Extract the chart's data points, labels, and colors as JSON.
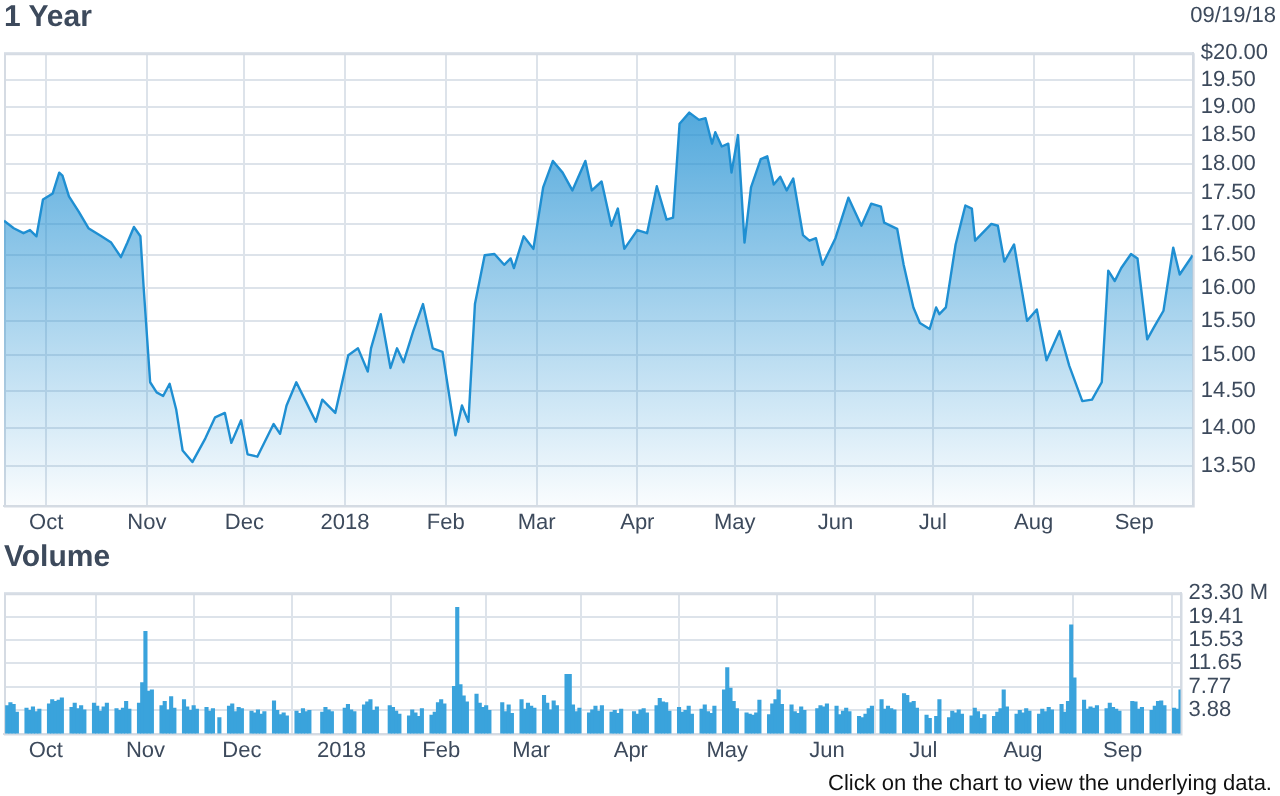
{
  "chart_data": [
    {
      "type": "area",
      "title": "1 Year",
      "subtitle": "09/19/18",
      "color": "#1f8fd2",
      "log": true,
      "grid": true,
      "xlim": [
        "2017-09-18",
        "2018-09-19"
      ],
      "xticks": [
        {
          "value": "2017-10-01",
          "label": "Oct"
        },
        {
          "value": "2017-11-01",
          "label": "Nov"
        },
        {
          "value": "2017-12-01",
          "label": "Dec"
        },
        {
          "value": "2018-01-01",
          "label": "2018"
        },
        {
          "value": "2018-02-01",
          "label": "Feb"
        },
        {
          "value": "2018-03-01",
          "label": "Mar"
        },
        {
          "value": "2018-04-01",
          "label": "Apr"
        },
        {
          "value": "2018-05-01",
          "label": "May"
        },
        {
          "value": "2018-06-01",
          "label": "Jun"
        },
        {
          "value": "2018-07-01",
          "label": "Jul"
        },
        {
          "value": "2018-08-01",
          "label": "Aug"
        },
        {
          "value": "2018-09-01",
          "label": "Sep"
        }
      ],
      "ylim": [
        13.0,
        20.0
      ],
      "yticks": [
        {
          "value": 13.5,
          "label": "13.50"
        },
        {
          "value": 14,
          "label": "14.00"
        },
        {
          "value": 14.5,
          "label": "14.50"
        },
        {
          "value": 15,
          "label": "15.00"
        },
        {
          "value": 15.5,
          "label": "15.50"
        },
        {
          "value": 16,
          "label": "16.00"
        },
        {
          "value": 16.5,
          "label": "16.50"
        },
        {
          "value": 17,
          "label": "17.00"
        },
        {
          "value": 17.5,
          "label": "17.50"
        },
        {
          "value": 18,
          "label": "18.00"
        },
        {
          "value": 18.5,
          "label": "18.50"
        },
        {
          "value": 19,
          "label": "19.00"
        },
        {
          "value": 19.5,
          "label": "19.50"
        },
        {
          "value": 20,
          "label": "$20.00"
        }
      ],
      "x": [
        "2017-09-18",
        "2017-09-21",
        "2017-09-24",
        "2017-09-26",
        "2017-09-28",
        "2017-09-30",
        "2017-10-03",
        "2017-10-05",
        "2017-10-06",
        "2017-10-08",
        "2017-10-11",
        "2017-10-14",
        "2017-10-18",
        "2017-10-21",
        "2017-10-24",
        "2017-10-26",
        "2017-10-28",
        "2017-10-30",
        "2017-10-31",
        "2017-11-02",
        "2017-11-04",
        "2017-11-06",
        "2017-11-08",
        "2017-11-10",
        "2017-11-12",
        "2017-11-15",
        "2017-11-19",
        "2017-11-22",
        "2017-11-25",
        "2017-11-27",
        "2017-11-30",
        "2017-12-02",
        "2017-12-05",
        "2017-12-10",
        "2017-12-12",
        "2017-12-14",
        "2017-12-17",
        "2017-12-20",
        "2017-12-23",
        "2017-12-25",
        "2017-12-29",
        "2018-01-02",
        "2018-01-05",
        "2018-01-08",
        "2018-01-09",
        "2018-01-12",
        "2018-01-15",
        "2018-01-17",
        "2018-01-19",
        "2018-01-22",
        "2018-01-25",
        "2018-01-28",
        "2018-01-31",
        "2018-02-04",
        "2018-02-06",
        "2018-02-08",
        "2018-02-10",
        "2018-02-13",
        "2018-02-16",
        "2018-02-19",
        "2018-02-21",
        "2018-02-22",
        "2018-02-25",
        "2018-02-28",
        "2018-03-03",
        "2018-03-06",
        "2018-03-09",
        "2018-03-12",
        "2018-03-16",
        "2018-03-18",
        "2018-03-21",
        "2018-03-24",
        "2018-03-26",
        "2018-03-28",
        "2018-04-01",
        "2018-04-04",
        "2018-04-07",
        "2018-04-10",
        "2018-04-12",
        "2018-04-14",
        "2018-04-17",
        "2018-04-20",
        "2018-04-22",
        "2018-04-24",
        "2018-04-25",
        "2018-04-27",
        "2018-04-29",
        "2018-04-30",
        "2018-05-02",
        "2018-05-04",
        "2018-05-06",
        "2018-05-09",
        "2018-05-11",
        "2018-05-13",
        "2018-05-15",
        "2018-05-17",
        "2018-05-19",
        "2018-05-22",
        "2018-05-24",
        "2018-05-26",
        "2018-05-28",
        "2018-06-01",
        "2018-06-05",
        "2018-06-09",
        "2018-06-12",
        "2018-06-15",
        "2018-06-16",
        "2018-06-20",
        "2018-06-22",
        "2018-06-25",
        "2018-06-27",
        "2018-06-30",
        "2018-07-02",
        "2018-07-03",
        "2018-07-05",
        "2018-07-08",
        "2018-07-11",
        "2018-07-13",
        "2018-07-14",
        "2018-07-19",
        "2018-07-21",
        "2018-07-23",
        "2018-07-26",
        "2018-07-30",
        "2018-08-02",
        "2018-08-05",
        "2018-08-09",
        "2018-08-12",
        "2018-08-16",
        "2018-08-19",
        "2018-08-22",
        "2018-08-24",
        "2018-08-26",
        "2018-08-28",
        "2018-08-31",
        "2018-09-02",
        "2018-09-05",
        "2018-09-07",
        "2018-09-10",
        "2018-09-13",
        "2018-09-15",
        "2018-09-19"
      ],
      "values": [
        17.05,
        16.93,
        16.85,
        16.9,
        16.8,
        17.4,
        17.5,
        17.85,
        17.8,
        17.45,
        17.2,
        16.93,
        16.8,
        16.7,
        16.47,
        16.7,
        16.95,
        16.8,
        16.0,
        14.62,
        14.48,
        14.43,
        14.6,
        14.25,
        13.7,
        13.55,
        13.86,
        14.14,
        14.2,
        13.8,
        14.1,
        13.65,
        13.62,
        14.05,
        13.92,
        14.3,
        14.62,
        14.35,
        14.08,
        14.38,
        14.2,
        15.0,
        15.1,
        14.77,
        15.1,
        15.6,
        14.82,
        15.1,
        14.9,
        15.35,
        15.75,
        15.1,
        15.05,
        13.9,
        14.3,
        14.08,
        15.75,
        16.5,
        16.52,
        16.35,
        16.45,
        16.3,
        16.8,
        16.6,
        17.6,
        18.05,
        17.85,
        17.55,
        18.05,
        17.55,
        17.7,
        16.97,
        17.25,
        16.6,
        16.9,
        16.85,
        17.62,
        17.07,
        17.1,
        18.7,
        18.9,
        18.77,
        18.8,
        18.35,
        18.55,
        18.3,
        18.35,
        17.85,
        18.5,
        16.7,
        17.6,
        18.08,
        18.13,
        17.65,
        17.78,
        17.55,
        17.75,
        16.82,
        16.73,
        16.77,
        16.35,
        16.77,
        17.43,
        16.97,
        17.33,
        17.28,
        17.02,
        16.92,
        16.35,
        15.7,
        15.47,
        15.38,
        15.7,
        15.6,
        15.7,
        16.67,
        17.3,
        17.25,
        16.73,
        17.0,
        16.97,
        16.4,
        16.67,
        15.5,
        15.67,
        14.93,
        15.35,
        14.85,
        14.36,
        14.38,
        14.62,
        16.26,
        16.1,
        16.3,
        16.52,
        16.45,
        15.23,
        15.4,
        15.65,
        16.62,
        16.2,
        16.5
      ]
    },
    {
      "type": "bar",
      "title": "Volume",
      "color": "#3aa3dc",
      "grid": true,
      "annotations": [
        "Click on the chart to view the underlying data."
      ],
      "xlim": [
        "2017-09-18",
        "2018-09-19"
      ],
      "xticks": [
        {
          "value": "2017-10-01",
          "label": "Oct"
        },
        {
          "value": "2017-11-01",
          "label": "Nov"
        },
        {
          "value": "2017-12-01",
          "label": "Dec"
        },
        {
          "value": "2018-01-01",
          "label": "2018"
        },
        {
          "value": "2018-02-01",
          "label": "Feb"
        },
        {
          "value": "2018-03-01",
          "label": "Mar"
        },
        {
          "value": "2018-04-01",
          "label": "Apr"
        },
        {
          "value": "2018-05-01",
          "label": "May"
        },
        {
          "value": "2018-06-01",
          "label": "Jun"
        },
        {
          "value": "2018-07-01",
          "label": "Jul"
        },
        {
          "value": "2018-08-01",
          "label": "Aug"
        },
        {
          "value": "2018-09-01",
          "label": "Sep"
        }
      ],
      "ylim": [
        0,
        23.3
      ],
      "yticks": [
        3.88,
        7.77,
        11.65,
        15.53,
        19.41,
        {
          "value": 23.3,
          "label": "23.30 M"
        }
      ],
      "x": [
        "2017-09-19",
        "2017-09-20",
        "2017-09-21",
        "2017-09-22",
        "2017-09-25",
        "2017-09-26",
        "2017-09-27",
        "2017-09-28",
        "2017-09-29",
        "2017-10-02",
        "2017-10-03",
        "2017-10-04",
        "2017-10-05",
        "2017-10-06",
        "2017-10-09",
        "2017-10-10",
        "2017-10-11",
        "2017-10-12",
        "2017-10-13",
        "2017-10-16",
        "2017-10-17",
        "2017-10-18",
        "2017-10-19",
        "2017-10-20",
        "2017-10-23",
        "2017-10-24",
        "2017-10-25",
        "2017-10-26",
        "2017-10-27",
        "2017-10-30",
        "2017-10-31",
        "2017-11-01",
        "2017-11-02",
        "2017-11-03",
        "2017-11-06",
        "2017-11-07",
        "2017-11-08",
        "2017-11-09",
        "2017-11-10",
        "2017-11-13",
        "2017-11-14",
        "2017-11-15",
        "2017-11-16",
        "2017-11-17",
        "2017-11-20",
        "2017-11-21",
        "2017-11-22",
        "2017-11-24",
        "2017-11-27",
        "2017-11-28",
        "2017-11-29",
        "2017-11-30",
        "2017-12-01",
        "2017-12-04",
        "2017-12-05",
        "2017-12-06",
        "2017-12-07",
        "2017-12-08",
        "2017-12-11",
        "2017-12-12",
        "2017-12-13",
        "2017-12-14",
        "2017-12-15",
        "2017-12-18",
        "2017-12-19",
        "2017-12-20",
        "2017-12-21",
        "2017-12-22",
        "2017-12-26",
        "2017-12-27",
        "2017-12-28",
        "2017-12-29",
        "2018-01-02",
        "2018-01-03",
        "2018-01-04",
        "2018-01-05",
        "2018-01-08",
        "2018-01-09",
        "2018-01-10",
        "2018-01-11",
        "2018-01-12",
        "2018-01-16",
        "2018-01-17",
        "2018-01-18",
        "2018-01-19",
        "2018-01-22",
        "2018-01-23",
        "2018-01-24",
        "2018-01-25",
        "2018-01-26",
        "2018-01-29",
        "2018-01-30",
        "2018-01-31",
        "2018-02-01",
        "2018-02-02",
        "2018-02-05",
        "2018-02-06",
        "2018-02-07",
        "2018-02-08",
        "2018-02-09",
        "2018-02-12",
        "2018-02-13",
        "2018-02-14",
        "2018-02-15",
        "2018-02-16",
        "2018-02-20",
        "2018-02-21",
        "2018-02-22",
        "2018-02-23",
        "2018-02-26",
        "2018-02-27",
        "2018-02-28",
        "2018-03-01",
        "2018-03-02",
        "2018-03-05",
        "2018-03-06",
        "2018-03-07",
        "2018-03-08",
        "2018-03-09",
        "2018-03-12",
        "2018-03-13",
        "2018-03-14",
        "2018-03-15",
        "2018-03-16",
        "2018-03-19",
        "2018-03-20",
        "2018-03-21",
        "2018-03-22",
        "2018-03-23",
        "2018-03-26",
        "2018-03-27",
        "2018-03-28",
        "2018-03-29",
        "2018-04-02",
        "2018-04-03",
        "2018-04-04",
        "2018-04-05",
        "2018-04-06",
        "2018-04-09",
        "2018-04-10",
        "2018-04-11",
        "2018-04-12",
        "2018-04-13",
        "2018-04-16",
        "2018-04-17",
        "2018-04-18",
        "2018-04-19",
        "2018-04-20",
        "2018-04-23",
        "2018-04-24",
        "2018-04-25",
        "2018-04-26",
        "2018-04-27",
        "2018-04-30",
        "2018-05-01",
        "2018-05-02",
        "2018-05-03",
        "2018-05-04",
        "2018-05-07",
        "2018-05-08",
        "2018-05-09",
        "2018-05-10",
        "2018-05-11",
        "2018-05-14",
        "2018-05-15",
        "2018-05-16",
        "2018-05-17",
        "2018-05-18",
        "2018-05-21",
        "2018-05-22",
        "2018-05-23",
        "2018-05-24",
        "2018-05-25",
        "2018-05-29",
        "2018-05-30",
        "2018-05-31",
        "2018-06-01",
        "2018-06-04",
        "2018-06-05",
        "2018-06-06",
        "2018-06-07",
        "2018-06-08",
        "2018-06-11",
        "2018-06-12",
        "2018-06-13",
        "2018-06-14",
        "2018-06-15",
        "2018-06-18",
        "2018-06-19",
        "2018-06-20",
        "2018-06-21",
        "2018-06-22",
        "2018-06-25",
        "2018-06-26",
        "2018-06-27",
        "2018-06-28",
        "2018-06-29",
        "2018-07-02",
        "2018-07-03",
        "2018-07-05",
        "2018-07-06",
        "2018-07-09",
        "2018-07-10",
        "2018-07-11",
        "2018-07-12",
        "2018-07-13",
        "2018-07-16",
        "2018-07-17",
        "2018-07-18",
        "2018-07-19",
        "2018-07-20",
        "2018-07-23",
        "2018-07-24",
        "2018-07-25",
        "2018-07-26",
        "2018-07-27",
        "2018-07-30",
        "2018-07-31",
        "2018-08-01",
        "2018-08-02",
        "2018-08-03",
        "2018-08-06",
        "2018-08-07",
        "2018-08-08",
        "2018-08-09",
        "2018-08-10",
        "2018-08-13",
        "2018-08-14",
        "2018-08-15",
        "2018-08-16",
        "2018-08-17",
        "2018-08-20",
        "2018-08-21",
        "2018-08-22",
        "2018-08-23",
        "2018-08-24",
        "2018-08-27",
        "2018-08-28",
        "2018-08-29",
        "2018-08-30",
        "2018-08-31",
        "2018-09-04",
        "2018-09-05",
        "2018-09-06",
        "2018-09-07",
        "2018-09-10",
        "2018-09-11",
        "2018-09-12",
        "2018-09-13",
        "2018-09-14",
        "2018-09-17",
        "2018-09-18",
        "2018-09-19"
      ],
      "values": [
        4.6,
        5.1,
        4.8,
        3.5,
        4.2,
        3.8,
        4.4,
        3.6,
        4.0,
        4.9,
        5.6,
        5.3,
        5.5,
        5.9,
        4.3,
        5.0,
        4.1,
        4.6,
        3.9,
        5.0,
        4.5,
        3.7,
        4.4,
        5.0,
        4.1,
        3.8,
        4.2,
        5.3,
        4.0,
        5.0,
        8.4,
        16.9,
        7.0,
        7.2,
        4.6,
        5.3,
        3.9,
        6.1,
        4.2,
        5.6,
        4.4,
        3.8,
        4.6,
        4.0,
        4.3,
        3.7,
        4.1,
        2.6,
        4.5,
        4.9,
        3.6,
        4.3,
        4.1,
        3.7,
        3.4,
        3.9,
        3.2,
        3.6,
        5.4,
        3.8,
        3.1,
        3.4,
        2.9,
        3.7,
        3.3,
        4.1,
        3.6,
        3.8,
        3.5,
        4.3,
        3.9,
        3.6,
        4.2,
        4.8,
        3.9,
        3.6,
        4.7,
        5.2,
        5.6,
        3.8,
        4.4,
        4.6,
        4.3,
        3.7,
        3.2,
        2.9,
        3.9,
        3.4,
        2.8,
        4.1,
        3.0,
        3.5,
        5.1,
        5.6,
        4.9,
        7.8,
        20.9,
        8.1,
        6.2,
        5.2,
        6.5,
        5.0,
        4.3,
        4.6,
        3.8,
        5.1,
        3.6,
        4.7,
        3.3,
        5.6,
        4.0,
        5.0,
        4.5,
        4.2,
        6.3,
        5.0,
        3.9,
        5.4,
        4.6,
        9.8,
        9.8,
        4.7,
        3.6,
        4.2,
        3.4,
        3.9,
        4.5,
        3.7,
        4.6,
        3.5,
        3.8,
        3.3,
        4.0,
        3.6,
        3.2,
        3.9,
        4.1,
        3.4,
        4.6,
        5.8,
        5.2,
        5.1,
        3.7,
        4.3,
        3.5,
        3.8,
        4.5,
        3.2,
        4.0,
        4.7,
        3.6,
        3.3,
        4.5,
        7.2,
        10.9,
        7.5,
        5.3,
        4.1,
        3.4,
        3.2,
        3.0,
        3.4,
        5.5,
        3.1,
        4.9,
        5.6,
        7.2,
        4.8,
        4.7,
        3.6,
        3.3,
        4.4,
        3.8,
        4.1,
        4.6,
        4.4,
        4.9,
        4.5,
        3.1,
        3.7,
        4.2,
        3.6,
        2.8,
        2.6,
        3.2,
        4.1,
        4.5,
        5.6,
        4.0,
        4.5,
        4.1,
        3.9,
        6.6,
        6.3,
        5.1,
        5.3,
        4.2,
        3.0,
        2.5,
        2.8,
        5.6,
        2.6,
        3.7,
        3.4,
        3.9,
        3.2,
        2.9,
        4.2,
        3.6,
        2.5,
        3.1,
        2.8,
        3.5,
        4.1,
        7.2,
        4.4,
        3.2,
        3.8,
        3.4,
        4.1,
        3.7,
        3.2,
        4.0,
        3.6,
        4.3,
        3.9,
        4.8,
        3.5,
        5.3,
        18.0,
        9.2,
        5.5,
        4.0,
        4.4,
        4.2,
        4.6,
        4.1,
        5.0,
        4.3,
        4.0,
        3.7,
        5.3,
        5.2,
        4.0,
        4.3,
        3.8,
        4.5,
        5.3,
        5.4,
        4.6,
        4.2,
        4.0,
        7.2
      ]
    }
  ]
}
